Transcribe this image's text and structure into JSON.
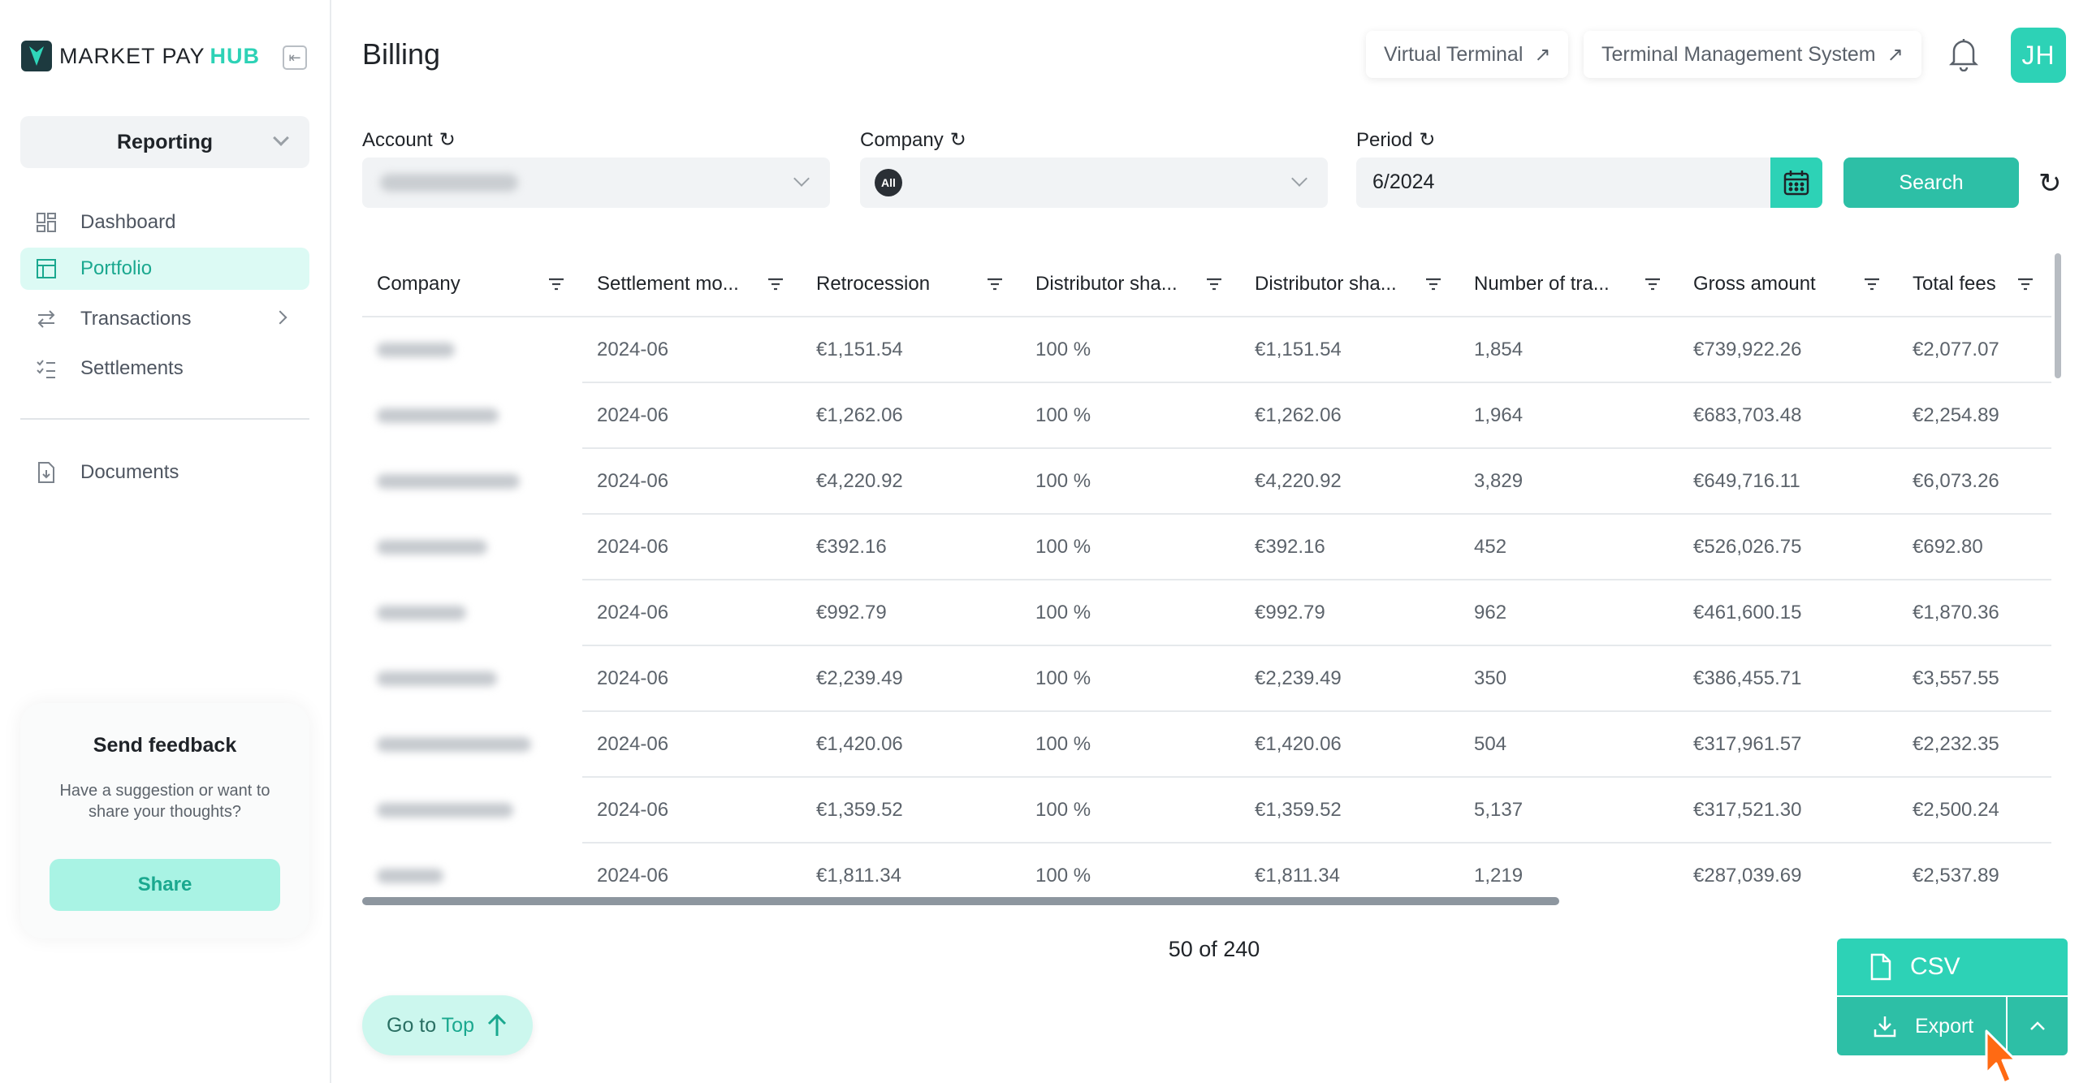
{
  "brand": {
    "name_main": "MARKET PAY",
    "name_accent": "HUB"
  },
  "sidebar": {
    "section": "Reporting",
    "items": [
      {
        "label": "Dashboard",
        "icon": "dashboard-grid-icon",
        "active": false
      },
      {
        "label": "Portfolio",
        "icon": "portfolio-table-icon",
        "active": true
      },
      {
        "label": "Transactions",
        "icon": "arrows-swap-icon",
        "active": false,
        "has_submenu": true
      },
      {
        "label": "Settlements",
        "icon": "checklist-icon",
        "active": false
      },
      {
        "label": "Documents",
        "icon": "document-download-icon",
        "active": false
      }
    ],
    "feedback": {
      "title": "Send feedback",
      "text": "Have a suggestion or want to share your thoughts?",
      "button": "Share"
    }
  },
  "header": {
    "title": "Billing",
    "links": [
      "Virtual Terminal",
      "Terminal Management System"
    ],
    "avatar_initials": "JH"
  },
  "filters": {
    "account_label": "Account",
    "company_label": "Company",
    "company_badge": "All",
    "period_label": "Period",
    "period_value": "6/2024",
    "search_label": "Search"
  },
  "table": {
    "columns": [
      "Company",
      "Settlement mo...",
      "Retrocession",
      "Distributor sha...",
      "Distributor sha...",
      "Number of tra...",
      "Gross amount",
      "Total fees"
    ],
    "rows": [
      {
        "month": "2024-06",
        "retro": "€1,151.54",
        "share_pct": "100 %",
        "share_amt": "€1,151.54",
        "count": "1,854",
        "gross": "€739,922.26",
        "fees": "€2,077.07"
      },
      {
        "month": "2024-06",
        "retro": "€1,262.06",
        "share_pct": "100 %",
        "share_amt": "€1,262.06",
        "count": "1,964",
        "gross": "€683,703.48",
        "fees": "€2,254.89"
      },
      {
        "month": "2024-06",
        "retro": "€4,220.92",
        "share_pct": "100 %",
        "share_amt": "€4,220.92",
        "count": "3,829",
        "gross": "€649,716.11",
        "fees": "€6,073.26"
      },
      {
        "month": "2024-06",
        "retro": "€392.16",
        "share_pct": "100 %",
        "share_amt": "€392.16",
        "count": "452",
        "gross": "€526,026.75",
        "fees": "€692.80"
      },
      {
        "month": "2024-06",
        "retro": "€992.79",
        "share_pct": "100 %",
        "share_amt": "€992.79",
        "count": "962",
        "gross": "€461,600.15",
        "fees": "€1,870.36"
      },
      {
        "month": "2024-06",
        "retro": "€2,239.49",
        "share_pct": "100 %",
        "share_amt": "€2,239.49",
        "count": "350",
        "gross": "€386,455.71",
        "fees": "€3,557.55"
      },
      {
        "month": "2024-06",
        "retro": "€1,420.06",
        "share_pct": "100 %",
        "share_amt": "€1,420.06",
        "count": "504",
        "gross": "€317,961.57",
        "fees": "€2,232.35"
      },
      {
        "month": "2024-06",
        "retro": "€1,359.52",
        "share_pct": "100 %",
        "share_amt": "€1,359.52",
        "count": "5,137",
        "gross": "€317,521.30",
        "fees": "€2,500.24"
      },
      {
        "month": "2024-06",
        "retro": "€1,811.34",
        "share_pct": "100 %",
        "share_amt": "€1,811.34",
        "count": "1,219",
        "gross": "€287,039.69",
        "fees": "€2,537.89"
      }
    ]
  },
  "pagination": {
    "text": "50 of 240"
  },
  "actions": {
    "go_top_main": "Go to",
    "go_top_accent": "Top",
    "csv": "CSV",
    "export": "Export"
  },
  "colors": {
    "accent": "#2dd2b6",
    "accent_dark": "#2dbfa6",
    "active_bg": "#dcfaf4"
  }
}
